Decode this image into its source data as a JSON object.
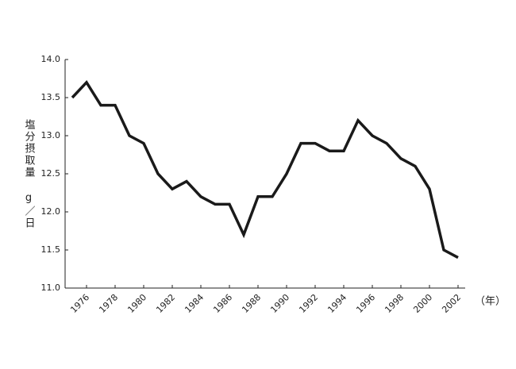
{
  "chart_data": {
    "type": "line",
    "ylabel": "塩分摂取量",
    "yunit": "g／日",
    "xunit": "（年）",
    "x": [
      1975,
      1976,
      1977,
      1978,
      1979,
      1980,
      1981,
      1982,
      1983,
      1984,
      1985,
      1986,
      1987,
      1988,
      1989,
      1990,
      1991,
      1992,
      1993,
      1994,
      1995,
      1996,
      1997,
      1998,
      1999,
      2000,
      2001,
      2002
    ],
    "values": [
      13.5,
      13.7,
      13.4,
      13.4,
      13.0,
      12.9,
      12.5,
      12.3,
      12.4,
      12.2,
      12.1,
      12.1,
      11.7,
      12.2,
      12.2,
      12.5,
      12.9,
      12.9,
      12.8,
      12.8,
      13.2,
      13.0,
      12.9,
      12.7,
      12.6,
      12.3,
      11.5,
      11.4
    ],
    "color": "#1a1a1a",
    "xlim": [
      1974.5,
      2002.5
    ],
    "xticks": [
      1976,
      1978,
      1980,
      1982,
      1984,
      1986,
      1988,
      1990,
      1992,
      1994,
      1996,
      1998,
      2000,
      2002
    ],
    "ylim": [
      11,
      14
    ],
    "yticks": [
      {
        "value": 11,
        "label": "11.0"
      },
      {
        "value": 11.5,
        "label": "11.5"
      },
      {
        "value": 12,
        "label": "12.0"
      },
      {
        "value": 12.5,
        "label": "12.5"
      },
      {
        "value": 13,
        "label": "13.0"
      },
      {
        "value": 13.5,
        "label": "13.5"
      },
      {
        "value": 14,
        "label": "14.0"
      }
    ],
    "grid": false
  }
}
